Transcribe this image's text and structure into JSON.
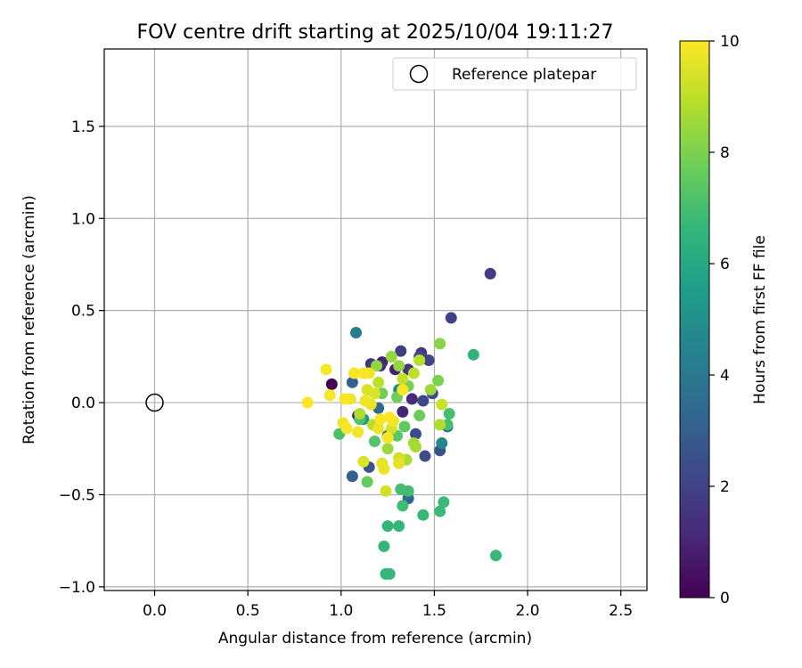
{
  "chart_data": {
    "type": "scatter",
    "title": "FOV centre drift starting at 2025/10/04 19:11:27",
    "xlabel": "Angular distance from reference (arcmin)",
    "ylabel": "Rotation from reference (arcmin)",
    "xlim": [
      -0.27,
      2.64
    ],
    "ylim": [
      -1.02,
      1.92
    ],
    "xticks": [
      0.0,
      0.5,
      1.0,
      1.5,
      2.0,
      2.5
    ],
    "xtick_labels": [
      "0.0",
      "0.5",
      "1.0",
      "1.5",
      "2.0",
      "2.5"
    ],
    "yticks": [
      -1.0,
      -0.5,
      0.0,
      0.5,
      1.0,
      1.5
    ],
    "ytick_labels": [
      "−1.0",
      "−0.5",
      "0.0",
      "0.5",
      "1.0",
      "1.5"
    ],
    "grid": true,
    "legend": {
      "position": "top-right",
      "entries": [
        "Reference platepar"
      ]
    },
    "reference_point": {
      "x": 0.0,
      "y": 0.0,
      "label": "Reference platepar"
    },
    "colorbar": {
      "label": "Hours from first FF file",
      "range": [
        0,
        10
      ],
      "ticks": [
        0,
        2,
        4,
        6,
        8,
        10
      ],
      "colormap": "viridis",
      "stops": [
        "#440154",
        "#482878",
        "#3e4989",
        "#31688e",
        "#26828e",
        "#1f9e89",
        "#35b779",
        "#6ece58",
        "#b5de2b",
        "#fde725"
      ]
    },
    "points": [
      {
        "x": 0.95,
        "y": 0.1,
        "h": 0.1
      },
      {
        "x": 1.09,
        "y": -0.07,
        "h": 0.8
      },
      {
        "x": 1.22,
        "y": 0.22,
        "h": 0.9
      },
      {
        "x": 1.29,
        "y": 0.18,
        "h": 0.9
      },
      {
        "x": 1.33,
        "y": -0.05,
        "h": 1.0
      },
      {
        "x": 1.38,
        "y": 0.02,
        "h": 1.2
      },
      {
        "x": 1.21,
        "y": 0.2,
        "h": 1.2
      },
      {
        "x": 1.16,
        "y": 0.21,
        "h": 1.5
      },
      {
        "x": 1.36,
        "y": 0.18,
        "h": 1.5
      },
      {
        "x": 1.43,
        "y": 0.27,
        "h": 1.6
      },
      {
        "x": 1.8,
        "y": 0.7,
        "h": 1.8
      },
      {
        "x": 1.59,
        "y": 0.46,
        "h": 2.0
      },
      {
        "x": 1.32,
        "y": 0.28,
        "h": 1.9
      },
      {
        "x": 1.47,
        "y": 0.23,
        "h": 2.1
      },
      {
        "x": 1.42,
        "y": 0.25,
        "h": 2.2
      },
      {
        "x": 1.44,
        "y": 0.01,
        "h": 2.2
      },
      {
        "x": 1.49,
        "y": 0.05,
        "h": 2.3
      },
      {
        "x": 1.4,
        "y": -0.17,
        "h": 2.3
      },
      {
        "x": 1.45,
        "y": -0.29,
        "h": 2.4
      },
      {
        "x": 1.53,
        "y": -0.26,
        "h": 2.5
      },
      {
        "x": 1.25,
        "y": -0.18,
        "h": 2.6
      },
      {
        "x": 1.15,
        "y": -0.35,
        "h": 2.6
      },
      {
        "x": 1.06,
        "y": -0.4,
        "h": 3.0
      },
      {
        "x": 1.06,
        "y": 0.11,
        "h": 3.1
      },
      {
        "x": 1.57,
        "y": -0.13,
        "h": 3.2
      },
      {
        "x": 1.36,
        "y": -0.52,
        "h": 3.3
      },
      {
        "x": 1.2,
        "y": -0.03,
        "h": 3.4
      },
      {
        "x": 1.08,
        "y": 0.38,
        "h": 4.3
      },
      {
        "x": 1.54,
        "y": -0.22,
        "h": 4.6
      },
      {
        "x": 1.31,
        "y": 0.07,
        "h": 4.8
      },
      {
        "x": 1.12,
        "y": -0.09,
        "h": 5.2
      },
      {
        "x": 1.71,
        "y": 0.26,
        "h": 6.5
      },
      {
        "x": 1.83,
        "y": -0.83,
        "h": 6.7
      },
      {
        "x": 1.24,
        "y": -0.93,
        "h": 6.6
      },
      {
        "x": 1.26,
        "y": -0.93,
        "h": 6.7
      },
      {
        "x": 1.23,
        "y": -0.78,
        "h": 6.6
      },
      {
        "x": 1.31,
        "y": -0.67,
        "h": 6.6
      },
      {
        "x": 1.25,
        "y": -0.67,
        "h": 6.6
      },
      {
        "x": 1.44,
        "y": -0.61,
        "h": 6.7
      },
      {
        "x": 1.53,
        "y": -0.59,
        "h": 6.8
      },
      {
        "x": 1.55,
        "y": -0.54,
        "h": 6.8
      },
      {
        "x": 1.33,
        "y": -0.56,
        "h": 6.9
      },
      {
        "x": 1.36,
        "y": -0.48,
        "h": 6.9
      },
      {
        "x": 1.32,
        "y": -0.47,
        "h": 7.0
      },
      {
        "x": 1.58,
        "y": -0.06,
        "h": 7.0
      },
      {
        "x": 1.57,
        "y": -0.12,
        "h": 7.0
      },
      {
        "x": 0.99,
        "y": -0.17,
        "h": 7.1
      },
      {
        "x": 1.1,
        "y": -0.09,
        "h": 7.2
      },
      {
        "x": 1.18,
        "y": -0.21,
        "h": 7.3
      },
      {
        "x": 1.3,
        "y": -0.18,
        "h": 7.4
      },
      {
        "x": 1.34,
        "y": -0.13,
        "h": 7.5
      },
      {
        "x": 1.14,
        "y": -0.43,
        "h": 7.6
      },
      {
        "x": 1.42,
        "y": -0.07,
        "h": 7.7
      },
      {
        "x": 1.22,
        "y": 0.05,
        "h": 7.8
      },
      {
        "x": 1.3,
        "y": 0.03,
        "h": 7.8
      },
      {
        "x": 1.36,
        "y": 0.09,
        "h": 7.9
      },
      {
        "x": 1.52,
        "y": 0.12,
        "h": 8.0
      },
      {
        "x": 1.53,
        "y": 0.32,
        "h": 8.2
      },
      {
        "x": 1.19,
        "y": 0.2,
        "h": 8.3
      },
      {
        "x": 1.27,
        "y": 0.25,
        "h": 8.4
      },
      {
        "x": 1.31,
        "y": 0.2,
        "h": 8.4
      },
      {
        "x": 1.48,
        "y": 0.07,
        "h": 8.5
      },
      {
        "x": 1.25,
        "y": -0.25,
        "h": 8.5
      },
      {
        "x": 1.39,
        "y": -0.22,
        "h": 8.6
      },
      {
        "x": 1.4,
        "y": -0.24,
        "h": 8.7
      },
      {
        "x": 1.35,
        "y": -0.31,
        "h": 8.7
      },
      {
        "x": 1.53,
        "y": -0.12,
        "h": 8.8
      },
      {
        "x": 1.1,
        "y": -0.06,
        "h": 8.8
      },
      {
        "x": 1.17,
        "y": -0.12,
        "h": 8.9
      },
      {
        "x": 1.42,
        "y": 0.23,
        "h": 8.9
      },
      {
        "x": 1.39,
        "y": 0.16,
        "h": 9.0
      },
      {
        "x": 1.2,
        "y": 0.11,
        "h": 9.0
      },
      {
        "x": 1.33,
        "y": 0.13,
        "h": 9.1
      },
      {
        "x": 1.54,
        "y": -0.01,
        "h": 9.2
      },
      {
        "x": 1.24,
        "y": -0.48,
        "h": 9.3
      },
      {
        "x": 1.31,
        "y": -0.3,
        "h": 9.3
      },
      {
        "x": 1.27,
        "y": -0.14,
        "h": 9.4
      },
      {
        "x": 1.14,
        "y": 0.07,
        "h": 9.4
      },
      {
        "x": 1.18,
        "y": 0.05,
        "h": 9.5
      },
      {
        "x": 1.12,
        "y": -0.32,
        "h": 9.5
      },
      {
        "x": 1.22,
        "y": -0.33,
        "h": 9.6
      },
      {
        "x": 1.31,
        "y": -0.33,
        "h": 9.6
      },
      {
        "x": 1.28,
        "y": -0.1,
        "h": 9.7
      },
      {
        "x": 1.2,
        "y": -0.14,
        "h": 9.7
      },
      {
        "x": 1.16,
        "y": -0.01,
        "h": 9.7
      },
      {
        "x": 1.13,
        "y": 0.01,
        "h": 9.8
      },
      {
        "x": 1.01,
        "y": -0.11,
        "h": 9.8
      },
      {
        "x": 1.05,
        "y": 0.02,
        "h": 9.8
      },
      {
        "x": 1.07,
        "y": 0.16,
        "h": 9.9
      },
      {
        "x": 0.92,
        "y": 0.18,
        "h": 9.9
      },
      {
        "x": 0.94,
        "y": 0.04,
        "h": 9.9
      },
      {
        "x": 0.82,
        "y": 0.0,
        "h": 10.0
      },
      {
        "x": 1.03,
        "y": -0.14,
        "h": 9.9
      },
      {
        "x": 1.09,
        "y": -0.16,
        "h": 9.8
      },
      {
        "x": 1.15,
        "y": 0.16,
        "h": 9.8
      },
      {
        "x": 1.12,
        "y": 0.16,
        "h": 9.9
      },
      {
        "x": 1.25,
        "y": -0.19,
        "h": 9.9
      },
      {
        "x": 1.26,
        "y": -0.08,
        "h": 10.0
      },
      {
        "x": 1.33,
        "y": 0.07,
        "h": 9.9
      },
      {
        "x": 1.21,
        "y": -0.09,
        "h": 9.9
      },
      {
        "x": 1.02,
        "y": 0.02,
        "h": 9.9
      },
      {
        "x": 1.23,
        "y": -0.36,
        "h": 9.7
      }
    ]
  }
}
